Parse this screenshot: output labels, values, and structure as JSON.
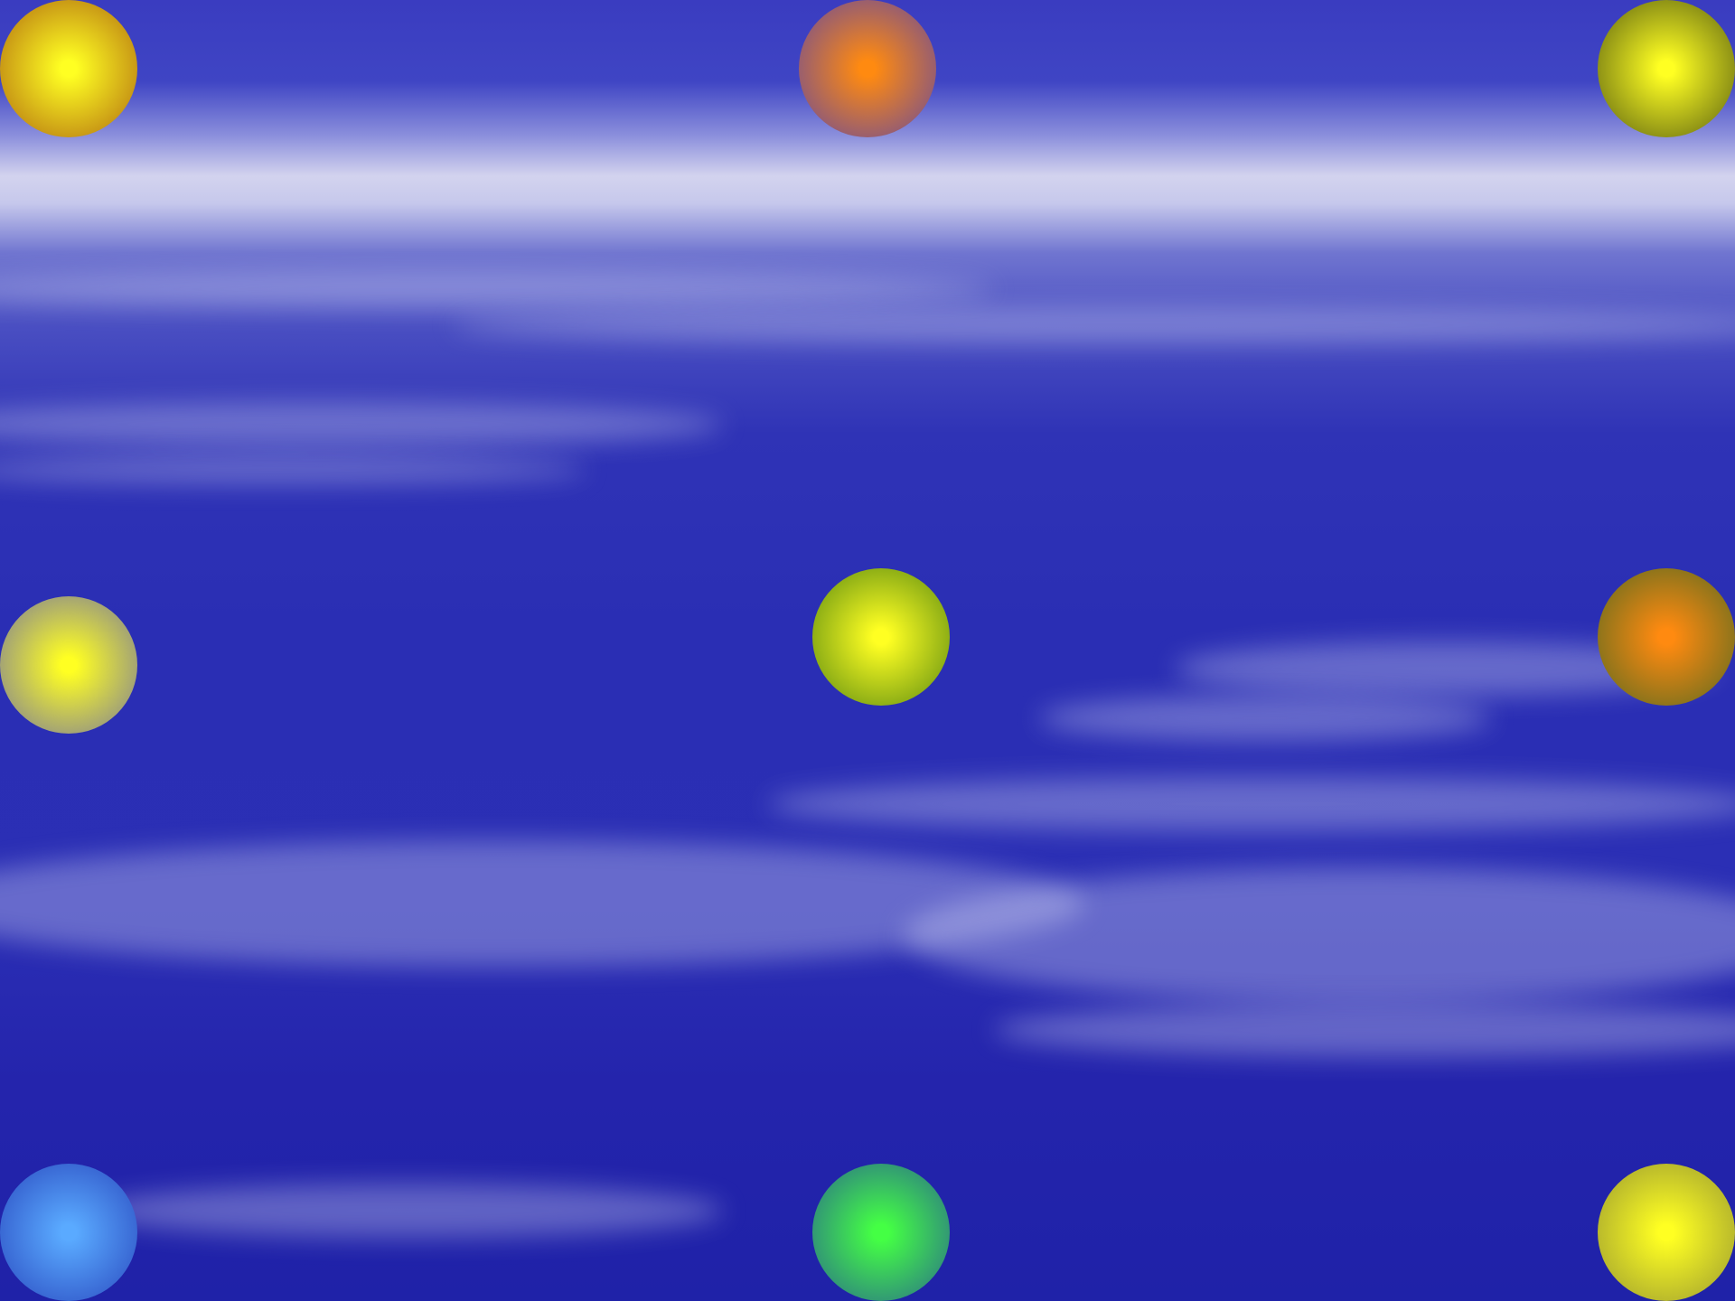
{
  "scene": {
    "name": "sky-with-orbs",
    "background_colors": {
      "sky_top": "#3a3cc0",
      "horizon_glow": "#d3d3ee",
      "sky_bottom": "#1f22a8"
    }
  },
  "orbs": [
    {
      "name": "orb-top-left",
      "core_color": "#ffff22",
      "edge_color": "#b06a10"
    },
    {
      "name": "orb-top-center",
      "core_color": "#ff8a10",
      "edge_color": "#6a4a9a"
    },
    {
      "name": "orb-top-right",
      "core_color": "#ffff22",
      "edge_color": "#5a6010"
    },
    {
      "name": "orb-middle-left",
      "core_color": "#ffff22",
      "edge_color": "#7a7a9a"
    },
    {
      "name": "orb-middle-center",
      "core_color": "#ffff22",
      "edge_color": "#5a8a10"
    },
    {
      "name": "orb-middle-right",
      "core_color": "#ff8a10",
      "edge_color": "#5a6a20"
    },
    {
      "name": "orb-bottom-left",
      "core_color": "#5aaaff",
      "edge_color": "#2a4ac0"
    },
    {
      "name": "orb-bottom-center",
      "core_color": "#44ff44",
      "edge_color": "#2a6a8a"
    },
    {
      "name": "orb-bottom-right",
      "core_color": "#ffff22",
      "edge_color": "#9a9a30"
    }
  ]
}
